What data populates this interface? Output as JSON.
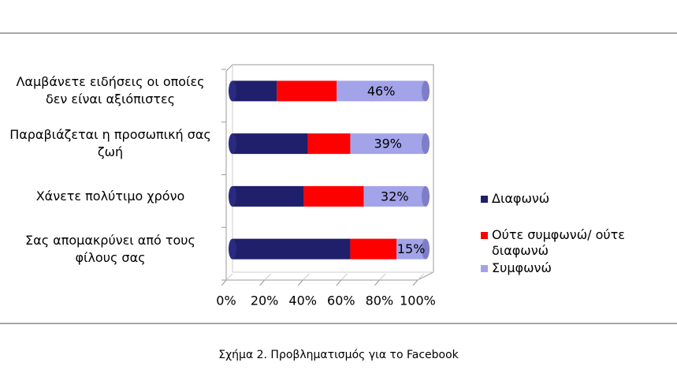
{
  "chart_data": {
    "type": "stacked-barh",
    "caption": "Σχήμα 2. Προβληματισμός για το Facebook",
    "categories": [
      "Λαμβάνετε ειδήσεις οι οποίες δεν είναι αξιόπιστες",
      "Παραβιάζεται η προσωπική σας ζωή",
      "Χάνετε πολύτιμο χρόνο",
      "Σας απομακρύνει από τους φίλους σας"
    ],
    "series": [
      {
        "name": "Διαφωνώ",
        "color": "#1f1f6b",
        "values": [
          23,
          39,
          37,
          61
        ]
      },
      {
        "name": "Ούτε συμφωνώ/ ούτε διαφωνώ",
        "color": "#ff0000",
        "values": [
          31,
          22,
          31,
          24
        ]
      },
      {
        "name": "Συμφωνώ",
        "color": "#a3a3ea",
        "values": [
          46,
          39,
          32,
          15
        ],
        "value_labels": [
          "46%",
          "39%",
          "32%",
          "15%"
        ]
      }
    ],
    "xlim": [
      0,
      100
    ],
    "xticks": [
      {
        "value": 0,
        "label": "0%"
      },
      {
        "value": 20,
        "label": "20%"
      },
      {
        "value": 40,
        "label": "40%"
      },
      {
        "value": 60,
        "label": "60%"
      },
      {
        "value": 80,
        "label": "80%"
      },
      {
        "value": 100,
        "label": "100%"
      }
    ],
    "legend": "right"
  }
}
